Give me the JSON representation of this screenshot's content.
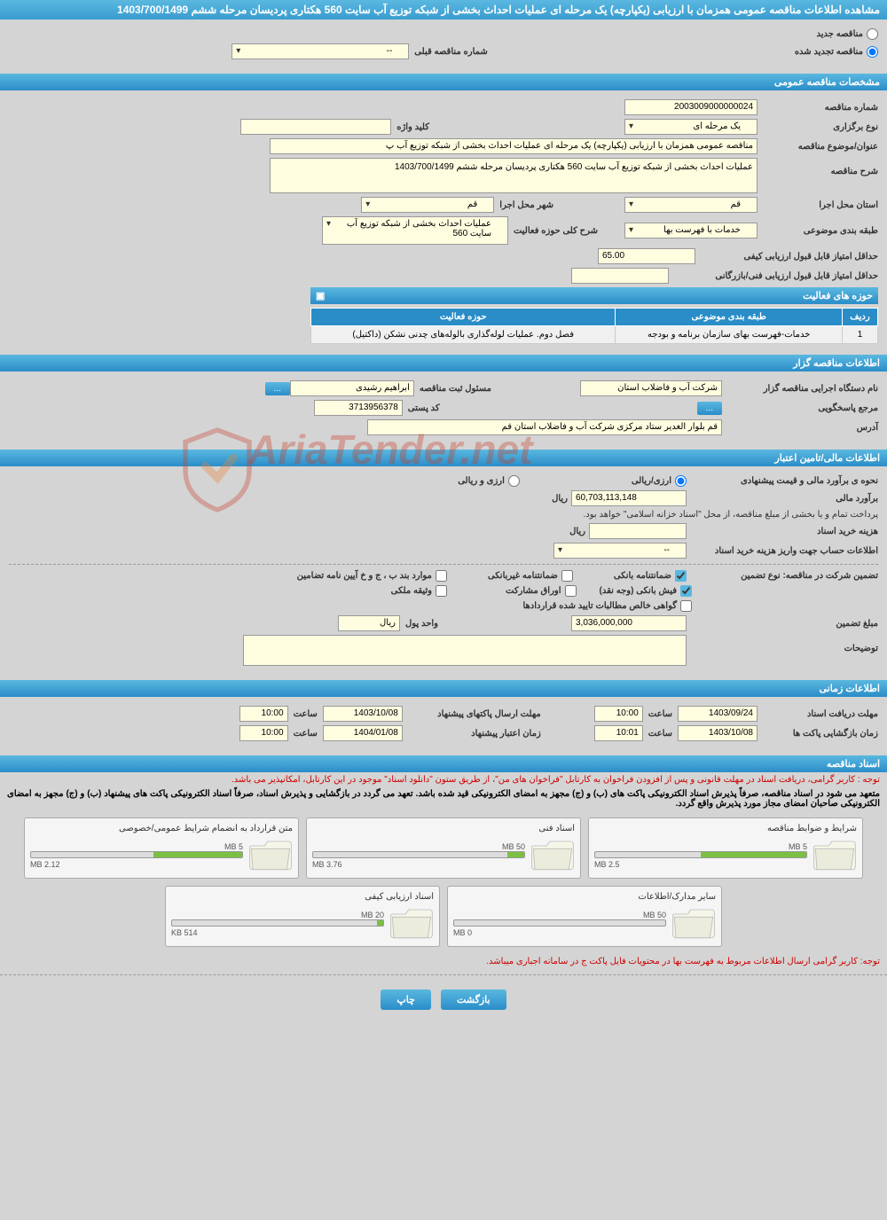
{
  "header": {
    "title": "مشاهده اطلاعات مناقصه عمومی همزمان با ارزیابی (یکپارچه) یک مرحله ای عملیات احداث بخشی از شبکه توزیع آب سایت 560 هکتاری پردیسان مرحله ششم 1403/700/1499"
  },
  "top_radio": {
    "new_label": "مناقصه جدید",
    "renewed_label": "مناقصه تجدید شده",
    "prev_number_label": "شماره مناقصه قبلی",
    "prev_number_value": "--"
  },
  "sections": {
    "general": "مشخصات مناقصه عمومی",
    "organizer": "اطلاعات مناقصه گزار",
    "financial": "اطلاعات مالی/تامین اعتبار",
    "timing": "اطلاعات زمانی",
    "docs": "اسناد مناقصه"
  },
  "general": {
    "tender_no_label": "شماره مناقصه",
    "tender_no": "2003009000000024",
    "type_label": "نوع برگزاری",
    "type_value": "یک مرحله ای",
    "keyword_label": "کلید واژه",
    "keyword_value": "",
    "subject_label": "عنوان/موضوع مناقصه",
    "subject_value": "مناقصه عمومی همزمان با ارزیابی (یکپارچه) یک مرحله ای عملیات احداث بخشی از شبکه توزیع آب پ",
    "desc_label": "شرح مناقصه",
    "desc_value": "عملیات احداث بخشی از شبکه توزیع آب سایت 560 هکتاری پردیسان مرحله ششم 1403/700/1499",
    "province_label": "استان محل اجرا",
    "province_value": "قم",
    "city_label": "شهر محل اجرا",
    "city_value": "قم",
    "category_label": "طبقه بندی موضوعی",
    "category_value": "خدمات با فهرست بها",
    "scope_label": "شرح کلی حوزه فعالیت",
    "scope_value": "عملیات احداث بخشی از شبکه توزیع آب سایت 560",
    "min_quality_label": "حداقل امتیاز قابل قبول ارزیابی کیفی",
    "min_quality_value": "65.00",
    "min_tech_label": "حداقل امتیاز قابل قبول ارزیابی فنی/بازرگانی",
    "min_tech_value": ""
  },
  "activity_table": {
    "title": "حوزه های فعالیت",
    "headers": {
      "row": "ردیف",
      "category": "طبقه بندی موضوعی",
      "scope": "حوزه فعالیت"
    },
    "rows": [
      {
        "n": "1",
        "cat": "خدمات-فهرست بهای سازمان برنامه و بودجه",
        "scope": "فصل دوم. عملیات لوله‌گذاری بالوله‌های چدنی نشکن (داکتیل)"
      }
    ]
  },
  "organizer": {
    "exec_label": "نام دستگاه اجرایی مناقصه گزار",
    "exec_value": "شرکت آب و فاضلاب استان",
    "reg_resp_label": "مسئول ثبت مناقصه",
    "reg_resp_value": "ابراهیم  رشیدی",
    "more": "...",
    "resp_ref_label": "مرجع پاسخگویی",
    "resp_ref_btn": "...",
    "postal_label": "کد پستی",
    "postal_value": "3713956378",
    "address_label": "آدرس",
    "address_value": "قم بلوار الغدیر ستاد مرکزی شرکت آب و فاضلاب استان قم"
  },
  "financial": {
    "est_label": "نحوه ی برآورد مالی و قیمت پیشنهادی",
    "opt_arzi": "ارزی/ریالی",
    "opt_rial": "ارزی و ریالی",
    "est_amount_label": "برآورد مالی",
    "est_amount": "60,703,113,148",
    "unit_rial": "ریال",
    "treasury_note": "پرداخت تمام و یا بخشی از مبلغ مناقصه، از محل \"اسناد خزانه اسلامی\" خواهد بود.",
    "doc_cost_label": "هزینه خرید اسناد",
    "doc_cost_value": "",
    "doc_cost_unit": "ریال",
    "account_label": "اطلاعات حساب جهت واریز هزینه خرید اسناد",
    "account_value": "--",
    "guarantee_label": "تضمین شرکت در مناقصه:   نوع تضمین",
    "g_bank": "ضمانتنامه بانکی",
    "g_nonbank": "ضمانتنامه غیربانکی",
    "g_bond": "موارد بند ب ، ج و خ آیین نامه تضامین",
    "g_cash": "فیش بانکی (وجه نقد)",
    "g_stock": "اوراق مشارکت",
    "g_property": "وثیقه ملکی",
    "g_claims": "گواهی خالص مطالبات تایید شده قراردادها",
    "guarantee_amount_label": "مبلغ تضمین",
    "guarantee_amount": "3,036,000,000",
    "money_unit_label": "واحد پول",
    "money_unit_value": "ریال",
    "remarks_label": "توضیحات",
    "remarks_value": ""
  },
  "timing": {
    "doc_receive_label": "مهلت دریافت اسناد",
    "doc_receive_date": "1403/09/24",
    "doc_receive_time_label": "ساعت",
    "doc_receive_time": "10:00",
    "packet_send_label": "مهلت ارسال پاکتهای پیشنهاد",
    "packet_send_date": "1403/10/08",
    "packet_send_time": "10:00",
    "open_label": "زمان بازگشایی پاکت ها",
    "open_date": "1403/10/08",
    "open_time": "10:01",
    "validity_label": "زمان اعتبار پیشنهاد",
    "validity_date": "1404/01/08",
    "validity_time": "10:00"
  },
  "docs": {
    "note1": "توجه : کاربر گرامی، دریافت اسناد در مهلت قانونی و پس از افزودن فراخوان به کارتابل \"فراخوان های من\"، از طریق ستون \"دانلود اسناد\" موجود در این کارتابل، امکانپذیر می باشد.",
    "note2": "متعهد می شود در اسناد مناقصه، صرفاً پذیرش اسناد الکترونیکی پاکت های (ب) و (ج) مجهز به امضای الکترونیکی قید شده باشد. تعهد می گردد در بازگشایی و پذیرش اسناد، صرفاً اسناد الکترونیکی پاکت های پیشنهاد (ب) و (ج) مجهز به امضای الکترونیکی صاحبان امضای مجاز مورد پذیرش واقع گردد.",
    "note3": "توجه: کاربر گرامی ارسال اطلاعات مربوط به فهرست بها در محتویات فایل پاکت ج در سامانه اجباری میباشد.",
    "cards": [
      {
        "title": "شرایط و ضوابط مناقصه",
        "used": "2.5 MB",
        "max": "5 MB",
        "pct": 50
      },
      {
        "title": "اسناد فنی",
        "used": "3.76 MB",
        "max": "50 MB",
        "pct": 8
      },
      {
        "title": "متن قرارداد به انضمام شرایط عمومی/خصوصی",
        "used": "2.12 MB",
        "max": "5 MB",
        "pct": 42
      },
      {
        "title": "سایر مدارک/اطلاعات",
        "used": "0 MB",
        "max": "50 MB",
        "pct": 0
      },
      {
        "title": "اسناد ارزیابی کیفی",
        "used": "514 KB",
        "max": "20 MB",
        "pct": 3
      }
    ]
  },
  "buttons": {
    "back": "بازگشت",
    "print": "چاپ"
  },
  "watermark": "AriaTender.net",
  "colors": {
    "header_grad_top": "#5ab8e0",
    "header_grad_bottom": "#2a8dc8",
    "field_bg": "#fffde0",
    "page_bg": "#d4d4d4",
    "progress_fill": "#7bc043",
    "note_red": "#c00"
  }
}
